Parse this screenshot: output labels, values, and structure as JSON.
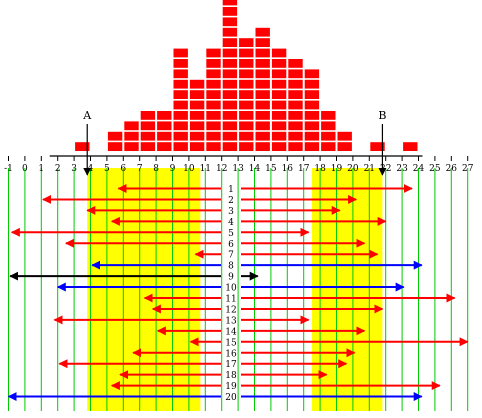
{
  "chart_data": {
    "type": "histogram-interval",
    "title": "",
    "xlabel": "",
    "ylabel": "",
    "xlim": [
      -1,
      27
    ],
    "ticks": [
      -1,
      0,
      1,
      2,
      3,
      4,
      5,
      6,
      7,
      8,
      9,
      10,
      11,
      12,
      13,
      14,
      15,
      16,
      17,
      18,
      19,
      20,
      21,
      22,
      23,
      24,
      25,
      26,
      27
    ],
    "histogram": {
      "bin_width": 1,
      "bins": [
        {
          "left": 3,
          "count": 1
        },
        {
          "left": 4,
          "count": 0
        },
        {
          "left": 5,
          "count": 2
        },
        {
          "left": 6,
          "count": 3
        },
        {
          "left": 7,
          "count": 4
        },
        {
          "left": 8,
          "count": 4
        },
        {
          "left": 9,
          "count": 10
        },
        {
          "left": 10,
          "count": 7
        },
        {
          "left": 11,
          "count": 10
        },
        {
          "left": 12,
          "count": 15
        },
        {
          "left": 13,
          "count": 11
        },
        {
          "left": 14,
          "count": 12
        },
        {
          "left": 15,
          "count": 10
        },
        {
          "left": 16,
          "count": 9
        },
        {
          "left": 17,
          "count": 8
        },
        {
          "left": 18,
          "count": 4
        },
        {
          "left": 19,
          "count": 2
        },
        {
          "left": 20,
          "count": 0
        },
        {
          "left": 21,
          "count": 1
        },
        {
          "left": 22,
          "count": 0
        },
        {
          "left": 23,
          "count": 1
        }
      ]
    },
    "markers": [
      {
        "label": "A",
        "x": 3.8
      },
      {
        "label": "B",
        "x": 21.8
      }
    ],
    "shaded_regions": [
      {
        "from": 3.8,
        "to": 10.7
      },
      {
        "from": 17.5,
        "to": 21.8
      }
    ],
    "intervals": [
      {
        "label": "1",
        "from": 5.7,
        "to": 23.6,
        "color": "#ff0000"
      },
      {
        "label": "2",
        "from": 1.1,
        "to": 20.2,
        "color": "#ff0000"
      },
      {
        "label": "3",
        "from": 3.8,
        "to": 19.2,
        "color": "#ff0000"
      },
      {
        "label": "4",
        "from": 5.3,
        "to": 22.0,
        "color": "#ff0000"
      },
      {
        "label": "5",
        "from": -0.8,
        "to": 17.3,
        "color": "#ff0000"
      },
      {
        "label": "6",
        "from": 2.5,
        "to": 20.7,
        "color": "#ff0000"
      },
      {
        "label": "7",
        "from": 10.4,
        "to": 21.5,
        "color": "#ff0000"
      },
      {
        "label": "8",
        "from": 4.1,
        "to": 24.2,
        "color": "#0000ff"
      },
      {
        "label": "9",
        "from": -0.9,
        "to": 14.2,
        "color": "#000000"
      },
      {
        "label": "10",
        "from": 2.0,
        "to": 23.1,
        "color": "#0000ff"
      },
      {
        "label": "11",
        "from": 7.3,
        "to": 26.2,
        "color": "#ff0000"
      },
      {
        "label": "12",
        "from": 7.8,
        "to": 21.8,
        "color": "#ff0000"
      },
      {
        "label": "13",
        "from": 1.8,
        "to": 17.3,
        "color": "#ff0000"
      },
      {
        "label": "14",
        "from": 8.1,
        "to": 20.7,
        "color": "#ff0000"
      },
      {
        "label": "15",
        "from": 10.1,
        "to": 27.0,
        "color": "#ff0000"
      },
      {
        "label": "16",
        "from": 6.6,
        "to": 20.1,
        "color": "#ff0000"
      },
      {
        "label": "17",
        "from": 2.1,
        "to": 19.6,
        "color": "#ff0000"
      },
      {
        "label": "18",
        "from": 5.8,
        "to": 18.4,
        "color": "#ff0000"
      },
      {
        "label": "19",
        "from": 5.3,
        "to": 25.3,
        "color": "#ff0000"
      },
      {
        "label": "20",
        "from": -1.0,
        "to": 24.2,
        "color": "#0000ff"
      }
    ],
    "grid": true,
    "colors": {
      "histogram": "#ff0000",
      "shade": "#ffff00",
      "grid": "#00cc00",
      "axis": "#000000"
    }
  }
}
